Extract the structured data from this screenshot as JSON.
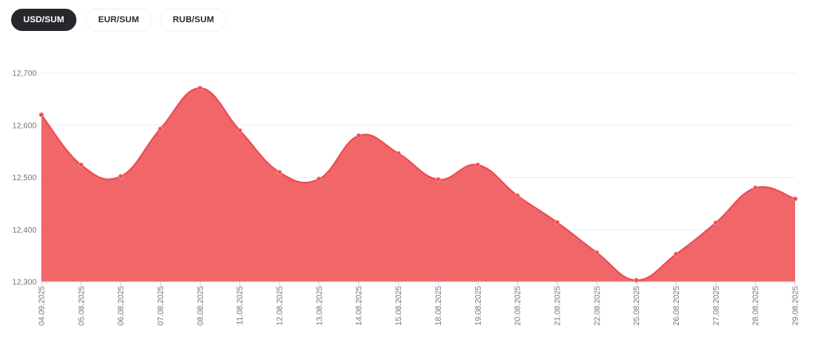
{
  "tabs": [
    {
      "label": "USD/SUM",
      "active": true
    },
    {
      "label": "EUR/SUM",
      "active": false
    },
    {
      "label": "RUB/SUM",
      "active": false
    }
  ],
  "colors": {
    "area_fill": "#ef5558",
    "line": "#ec4b4f",
    "grid": "#eeeeee",
    "tick_text": "#777777",
    "active_tab_bg": "#26282d"
  },
  "chart_data": {
    "type": "area",
    "x": [
      "04.09.2025",
      "05.08.2025",
      "06.08.2025",
      "07.08.2025",
      "08.08.2025",
      "11.08.2025",
      "12.08.2025",
      "13.08.2025",
      "14.08.2025",
      "15.08.2025",
      "18.08.2025",
      "19.08.2025",
      "20.08.2025",
      "21.08.2025",
      "22.08.2025",
      "25.08.2025",
      "26.08.2025",
      "27.08.2025",
      "28.08.2025",
      "29.08.2025"
    ],
    "series": [
      {
        "values": [
          12620,
          12524,
          12502,
          12593,
          12671,
          12590,
          12510,
          12497,
          12580,
          12546,
          12496,
          12524,
          12465,
          12414,
          12356,
          12303,
          12353,
          12413,
          12480,
          12459
        ]
      }
    ],
    "yticks": [
      12300,
      12400,
      12500,
      12600,
      12700
    ],
    "ytick_labels": [
      "12,300",
      "12,400",
      "12,500",
      "12,600",
      "12,700"
    ],
    "ylim": [
      12300,
      12700
    ],
    "grid": true,
    "legend": "none"
  }
}
